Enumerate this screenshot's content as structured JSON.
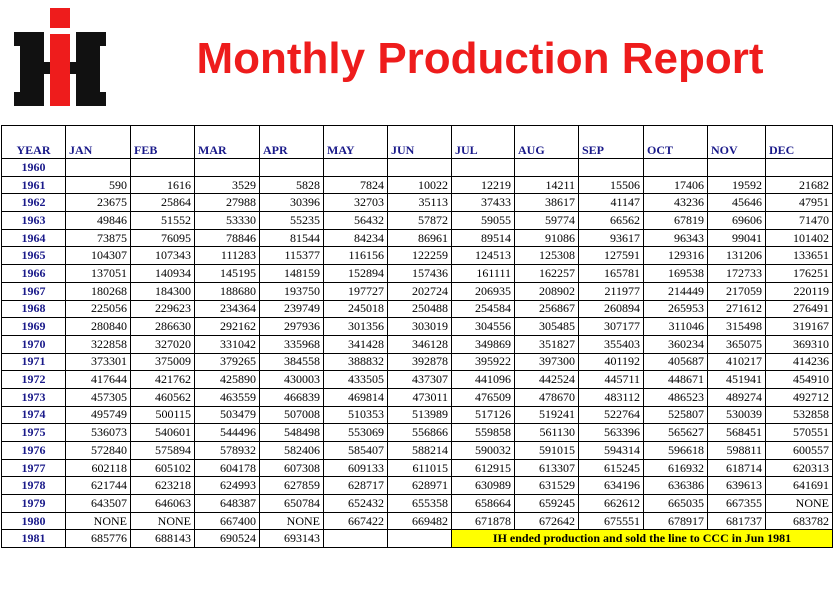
{
  "title": "Monthly Production Report",
  "colors": {
    "title": "#ee1c1c",
    "logo_red": "#ee1c1c",
    "logo_black": "#111111",
    "year_text": "#1a1a8a",
    "note_bg": "#ffff00"
  },
  "columns": [
    "YEAR",
    "JAN",
    "FEB",
    "MAR",
    "APR",
    "MAY",
    "JUN",
    "JUL",
    "AUG",
    "SEP",
    "OCT",
    "NOV",
    "DEC"
  ],
  "rows": [
    {
      "year": "1960",
      "values": [
        "",
        "",
        "",
        "",
        "",
        "",
        "",
        "",
        "",
        "",
        "",
        ""
      ]
    },
    {
      "year": "1961",
      "values": [
        "590",
        "1616",
        "3529",
        "5828",
        "7824",
        "10022",
        "12219",
        "14211",
        "15506",
        "17406",
        "19592",
        "21682"
      ]
    },
    {
      "year": "1962",
      "values": [
        "23675",
        "25864",
        "27988",
        "30396",
        "32703",
        "35113",
        "37433",
        "38617",
        "41147",
        "43236",
        "45646",
        "47951"
      ]
    },
    {
      "year": "1963",
      "values": [
        "49846",
        "51552",
        "53330",
        "55235",
        "56432",
        "57872",
        "59055",
        "59774",
        "66562",
        "67819",
        "69606",
        "71470"
      ]
    },
    {
      "year": "1964",
      "values": [
        "73875",
        "76095",
        "78846",
        "81544",
        "84234",
        "86961",
        "89514",
        "91086",
        "93617",
        "96343",
        "99041",
        "101402"
      ]
    },
    {
      "year": "1965",
      "values": [
        "104307",
        "107343",
        "111283",
        "115377",
        "116156",
        "122259",
        "124513",
        "125308",
        "127591",
        "129316",
        "131206",
        "133651"
      ]
    },
    {
      "year": "1966",
      "values": [
        "137051",
        "140934",
        "145195",
        "148159",
        "152894",
        "157436",
        "161111",
        "162257",
        "165781",
        "169538",
        "172733",
        "176251"
      ]
    },
    {
      "year": "1967",
      "values": [
        "180268",
        "184300",
        "188680",
        "193750",
        "197727",
        "202724",
        "206935",
        "208902",
        "211977",
        "214449",
        "217059",
        "220119"
      ]
    },
    {
      "year": "1968",
      "values": [
        "225056",
        "229623",
        "234364",
        "239749",
        "245018",
        "250488",
        "254584",
        "256867",
        "260894",
        "265953",
        "271612",
        "276491"
      ]
    },
    {
      "year": "1969",
      "values": [
        "280840",
        "286630",
        "292162",
        "297936",
        "301356",
        "303019",
        "304556",
        "305485",
        "307177",
        "311046",
        "315498",
        "319167"
      ]
    },
    {
      "year": "1970",
      "values": [
        "322858",
        "327020",
        "331042",
        "335968",
        "341428",
        "346128",
        "349869",
        "351827",
        "355403",
        "360234",
        "365075",
        "369310"
      ]
    },
    {
      "year": "1971",
      "values": [
        "373301",
        "375009",
        "379265",
        "384558",
        "388832",
        "392878",
        "395922",
        "397300",
        "401192",
        "405687",
        "410217",
        "414236"
      ]
    },
    {
      "year": "1972",
      "values": [
        "417644",
        "421762",
        "425890",
        "430003",
        "433505",
        "437307",
        "441096",
        "442524",
        "445711",
        "448671",
        "451941",
        "454910"
      ]
    },
    {
      "year": "1973",
      "values": [
        "457305",
        "460562",
        "463559",
        "466839",
        "469814",
        "473011",
        "476509",
        "478670",
        "483112",
        "486523",
        "489274",
        "492712"
      ]
    },
    {
      "year": "1974",
      "values": [
        "495749",
        "500115",
        "503479",
        "507008",
        "510353",
        "513989",
        "517126",
        "519241",
        "522764",
        "525807",
        "530039",
        "532858"
      ]
    },
    {
      "year": "1975",
      "values": [
        "536073",
        "540601",
        "544496",
        "548498",
        "553069",
        "556866",
        "559858",
        "561130",
        "563396",
        "565627",
        "568451",
        "570551"
      ]
    },
    {
      "year": "1976",
      "values": [
        "572840",
        "575894",
        "578932",
        "582406",
        "585407",
        "588214",
        "590032",
        "591015",
        "594314",
        "596618",
        "598811",
        "600557"
      ]
    },
    {
      "year": "1977",
      "values": [
        "602118",
        "605102",
        "604178",
        "607308",
        "609133",
        "611015",
        "612915",
        "613307",
        "615245",
        "616932",
        "618714",
        "620313"
      ]
    },
    {
      "year": "1978",
      "values": [
        "621744",
        "623218",
        "624993",
        "627859",
        "628717",
        "628971",
        "630989",
        "631529",
        "634196",
        "636386",
        "639613",
        "641691"
      ]
    },
    {
      "year": "1979",
      "values": [
        "643507",
        "646063",
        "648387",
        "650784",
        "652432",
        "655358",
        "658664",
        "659245",
        "662612",
        "665035",
        "667355",
        "NONE"
      ]
    },
    {
      "year": "1980",
      "values": [
        "NONE",
        "NONE",
        "667400",
        "NONE",
        "667422",
        "669482",
        "671878",
        "672642",
        "675551",
        "678917",
        "681737",
        "683782"
      ]
    },
    {
      "year": "1981",
      "values": [
        "685776",
        "688143",
        "690524",
        "693143",
        "",
        ""
      ]
    }
  ],
  "note": "IH ended production and sold the line to CCC in Jun 1981"
}
